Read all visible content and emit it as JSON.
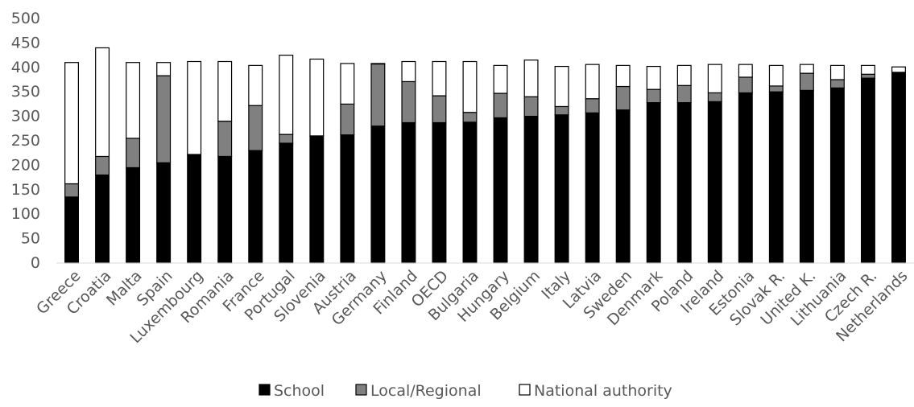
{
  "chart_data": {
    "type": "bar",
    "stacked": true,
    "title": "",
    "xlabel": "",
    "ylabel": "",
    "ylim": [
      0,
      500
    ],
    "yticks": [
      "0",
      "50",
      "100",
      "150",
      "200",
      "250",
      "300",
      "350",
      "400",
      "450",
      "500"
    ],
    "grid": false,
    "legend_position": "bottom",
    "categories": [
      "Greece",
      "Croatia",
      "Malta",
      "Spain",
      "Luxembourg",
      "Romania",
      "France",
      "Portugal",
      "Slovenia",
      "Austria",
      "Germany",
      "Finland",
      "OECD",
      "Bulgaria",
      "Hungary",
      "Belgium",
      "Italy",
      "Latvia",
      "Sweden",
      "Denmark",
      "Poland",
      "Ireland",
      "Estonia",
      "Slovak R.",
      "United K.",
      "Lithuania",
      "Czech R.",
      "Netherlands"
    ],
    "series": [
      {
        "name": "School",
        "color": "#000000",
        "values": [
          135,
          180,
          195,
          205,
          222,
          218,
          230,
          245,
          260,
          262,
          280,
          287,
          287,
          288,
          297,
          300,
          303,
          307,
          313,
          328,
          328,
          330,
          348,
          350,
          353,
          358,
          378,
          390
        ]
      },
      {
        "name": "Local/Regional",
        "color": "#808080",
        "values": [
          27,
          38,
          60,
          178,
          0,
          72,
          92,
          18,
          0,
          63,
          127,
          84,
          55,
          20,
          50,
          40,
          17,
          29,
          48,
          27,
          35,
          18,
          32,
          12,
          35,
          17,
          8,
          0
        ]
      },
      {
        "name": "National authority",
        "color": "#ffffff",
        "values": [
          248,
          222,
          155,
          27,
          190,
          122,
          82,
          162,
          157,
          83,
          1,
          41,
          70,
          104,
          57,
          75,
          82,
          70,
          43,
          47,
          41,
          58,
          26,
          42,
          18,
          29,
          18,
          11
        ]
      }
    ]
  }
}
